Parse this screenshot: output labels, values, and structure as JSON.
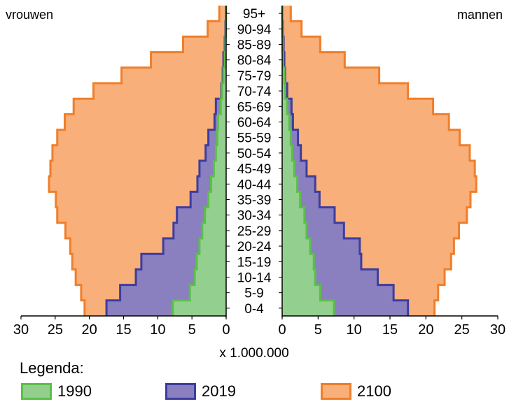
{
  "chart_data": {
    "type": "bar",
    "orientation": "population-pyramid",
    "side_labels": {
      "left": "vrouwen",
      "right": "mannen"
    },
    "unit_label": "x 1.000.000",
    "x_ticks_left": [
      "30",
      "25",
      "20",
      "15",
      "10",
      "5",
      "0"
    ],
    "x_ticks_right": [
      "0",
      "5",
      "10",
      "15",
      "20",
      "25",
      "30"
    ],
    "xlim": [
      0,
      30
    ],
    "categories": [
      "0-4",
      "5-9",
      "10-14",
      "15-19",
      "20-24",
      "25-29",
      "30-34",
      "35-39",
      "40-44",
      "45-49",
      "50-54",
      "55-59",
      "60-64",
      "65-69",
      "70-74",
      "75-79",
      "80-84",
      "85-89",
      "90-94",
      "95+"
    ],
    "series": [
      {
        "name": "1990",
        "color": "#93CF8E",
        "stroke": "#5CBF47",
        "vrouwen": [
          7.8,
          5.3,
          4.6,
          4.3,
          3.9,
          3.5,
          3.1,
          2.6,
          2.2,
          1.8,
          1.5,
          1.3,
          1.2,
          0.8,
          0.6,
          0.4,
          0.2,
          0.1,
          0.05,
          0.02
        ],
        "mannen": [
          7.2,
          5.3,
          4.6,
          4.4,
          3.9,
          3.4,
          3.1,
          2.5,
          2.1,
          1.7,
          1.4,
          1.2,
          1.0,
          0.7,
          0.4,
          0.3,
          0.1,
          0.05,
          0.02,
          0.01
        ]
      },
      {
        "name": "2019",
        "color": "#8A7FBF",
        "stroke": "#3D3D9E",
        "vrouwen": [
          17.5,
          15.5,
          13.2,
          12.4,
          9.2,
          7.7,
          7.2,
          5.2,
          4.2,
          3.9,
          3.0,
          2.6,
          1.7,
          1.5,
          0.7,
          0.5,
          0.4,
          0.2,
          0.1,
          0.04
        ],
        "mannen": [
          17.5,
          15.5,
          13.3,
          11.0,
          10.8,
          8.6,
          7.3,
          5.2,
          4.6,
          3.4,
          2.6,
          2.2,
          1.5,
          1.3,
          0.7,
          0.4,
          0.3,
          0.2,
          0.1,
          0.03
        ]
      },
      {
        "name": "2100",
        "color": "#F8AF79",
        "stroke": "#F07E2A",
        "vrouwen": [
          20.7,
          21.2,
          22.0,
          22.5,
          22.8,
          23.5,
          24.7,
          24.9,
          25.9,
          25.7,
          25.4,
          24.7,
          23.6,
          22.3,
          19.4,
          15.3,
          11.0,
          6.3,
          2.7,
          1.0
        ],
        "mannen": [
          21.2,
          21.7,
          22.6,
          23.5,
          23.9,
          24.6,
          25.7,
          26.2,
          27.0,
          26.8,
          26.1,
          24.7,
          23.2,
          21.0,
          17.5,
          13.5,
          8.7,
          5.3,
          2.7,
          1.2
        ]
      }
    ]
  },
  "legend": {
    "title": "Legenda:",
    "items": [
      "1990",
      "2019",
      "2100"
    ]
  }
}
